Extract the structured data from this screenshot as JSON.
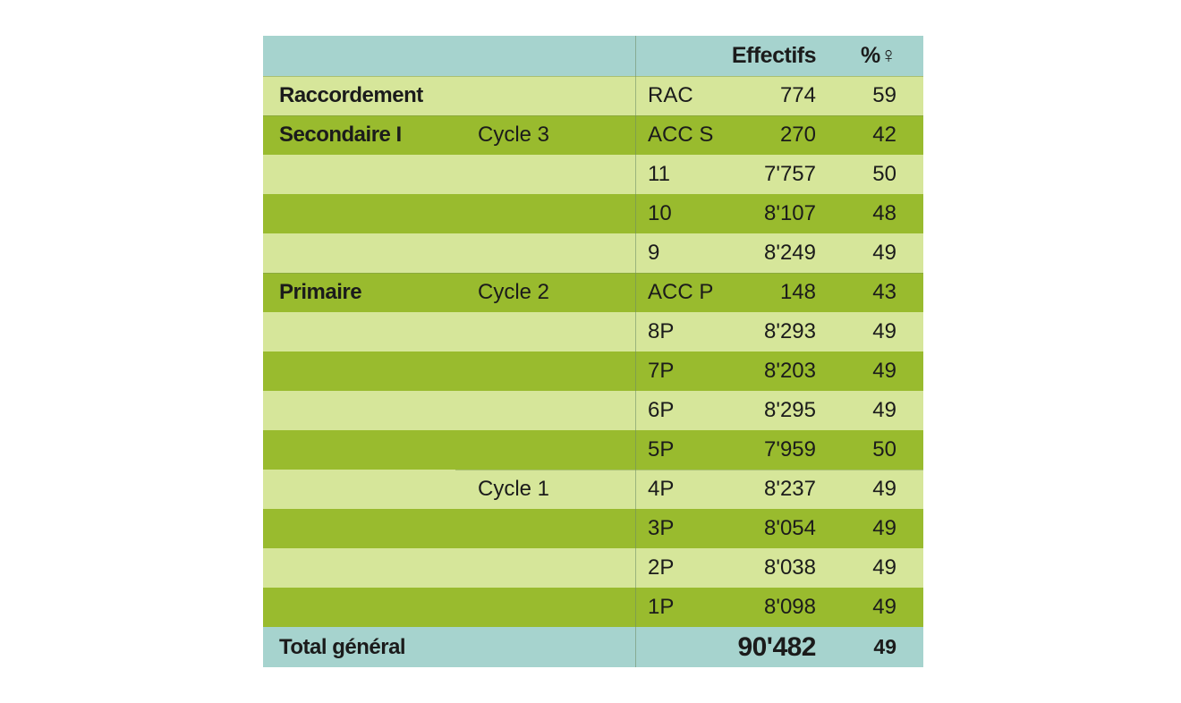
{
  "table": {
    "headers": {
      "effectifs": "Effectifs",
      "percent_female": "%♀"
    },
    "rows": [
      {
        "level": "Raccordement",
        "cycle": "",
        "grade": "RAC",
        "effectifs": "774",
        "pct": "59"
      },
      {
        "level": "Secondaire I",
        "cycle": "Cycle 3",
        "grade": "ACC S",
        "effectifs": "270",
        "pct": "42"
      },
      {
        "level": "",
        "cycle": "",
        "grade": "11",
        "effectifs": "7'757",
        "pct": "50"
      },
      {
        "level": "",
        "cycle": "",
        "grade": "10",
        "effectifs": "8'107",
        "pct": "48"
      },
      {
        "level": "",
        "cycle": "",
        "grade": "9",
        "effectifs": "8'249",
        "pct": "49"
      },
      {
        "level": "Primaire",
        "cycle": "Cycle 2",
        "grade": "ACC P",
        "effectifs": "148",
        "pct": "43"
      },
      {
        "level": "",
        "cycle": "",
        "grade": "8P",
        "effectifs": "8'293",
        "pct": "49"
      },
      {
        "level": "",
        "cycle": "",
        "grade": "7P",
        "effectifs": "8'203",
        "pct": "49"
      },
      {
        "level": "",
        "cycle": "",
        "grade": "6P",
        "effectifs": "8'295",
        "pct": "49"
      },
      {
        "level": "",
        "cycle": "",
        "grade": "5P",
        "effectifs": "7'959",
        "pct": "50"
      },
      {
        "level": "",
        "cycle": "Cycle 1",
        "grade": "4P",
        "effectifs": "8'237",
        "pct": "49"
      },
      {
        "level": "",
        "cycle": "",
        "grade": "3P",
        "effectifs": "8'054",
        "pct": "49"
      },
      {
        "level": "",
        "cycle": "",
        "grade": "2P",
        "effectifs": "8'038",
        "pct": "49"
      },
      {
        "level": "",
        "cycle": "",
        "grade": "1P",
        "effectifs": "8'098",
        "pct": "49"
      }
    ],
    "total": {
      "label": "Total général",
      "effectifs": "90'482",
      "pct": "49"
    }
  },
  "colors": {
    "header": "#a6d3ce",
    "light": "#d6e69a",
    "dark": "#99bb2e"
  }
}
